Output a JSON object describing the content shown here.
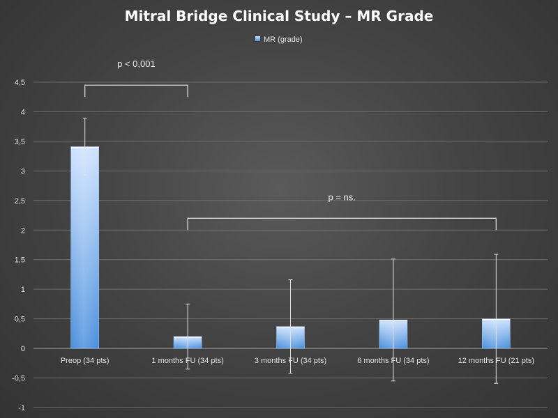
{
  "chart_data": {
    "type": "bar",
    "title": "Mitral Bridge Clinical Study –  MR Grade",
    "legend": {
      "position": "top",
      "entries": [
        "MR (grade)"
      ]
    },
    "categories": [
      "Preop (34 pts)",
      "1 months FU (34 pts)",
      "3 months FU (34 pts)",
      "6 months FU (34 pts)",
      "12 months FU (21 pts)"
    ],
    "series": [
      {
        "name": "MR (grade)",
        "values": [
          3.41,
          0.2,
          0.37,
          0.48,
          0.5
        ],
        "error_bars": [
          0.48,
          0.55,
          0.79,
          1.03,
          1.09
        ]
      }
    ],
    "ylim": [
      -1,
      4.5
    ],
    "yticks": [
      -1,
      -0.5,
      0,
      0.5,
      1,
      1.5,
      2,
      2.5,
      3,
      3.5,
      4,
      4.5
    ],
    "ytick_labels": [
      "-1",
      "-0,5",
      "0",
      "0,5",
      "1",
      "1,5",
      "2",
      "2,5",
      "3",
      "3,5",
      "4",
      "4,5"
    ],
    "grid": true,
    "colors": {
      "bar_top": "#cfe3ff",
      "bar_bottom": "#4a8fdc"
    },
    "annotations": [
      {
        "text": "p < 0,001",
        "from_category": 0,
        "to_category": 1,
        "level": 4.45
      },
      {
        "text": "p = ns.",
        "from_category": 1,
        "to_category": 4,
        "level": 2.2
      }
    ]
  }
}
